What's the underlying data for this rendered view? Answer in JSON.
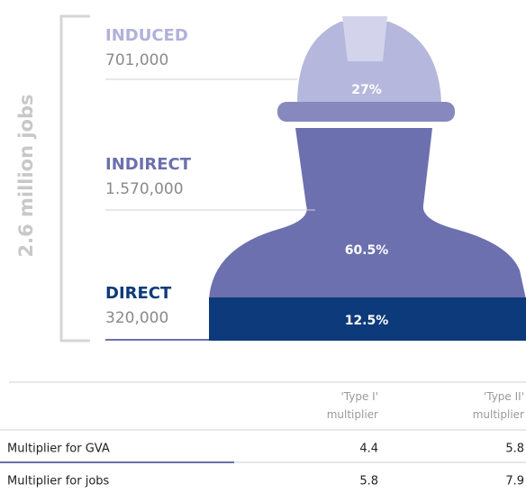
{
  "infographic": {
    "total_label": "2.6 million jobs",
    "segments": [
      {
        "name": "INDUCED",
        "count": "701,000",
        "share": "27%"
      },
      {
        "name": "INDIRECT",
        "count": "1.570,000",
        "share": "60.5%"
      },
      {
        "name": "DIRECT",
        "count": "320,000",
        "share": "12.5%"
      }
    ]
  },
  "table": {
    "header": [
      "'Type I' multiplier",
      "'Type II' multiplier"
    ],
    "rows": [
      [
        "Multiplier for GVA",
        4.4,
        5.8
      ],
      [
        "Multiplier for jobs",
        5.8,
        7.9
      ]
    ]
  }
}
